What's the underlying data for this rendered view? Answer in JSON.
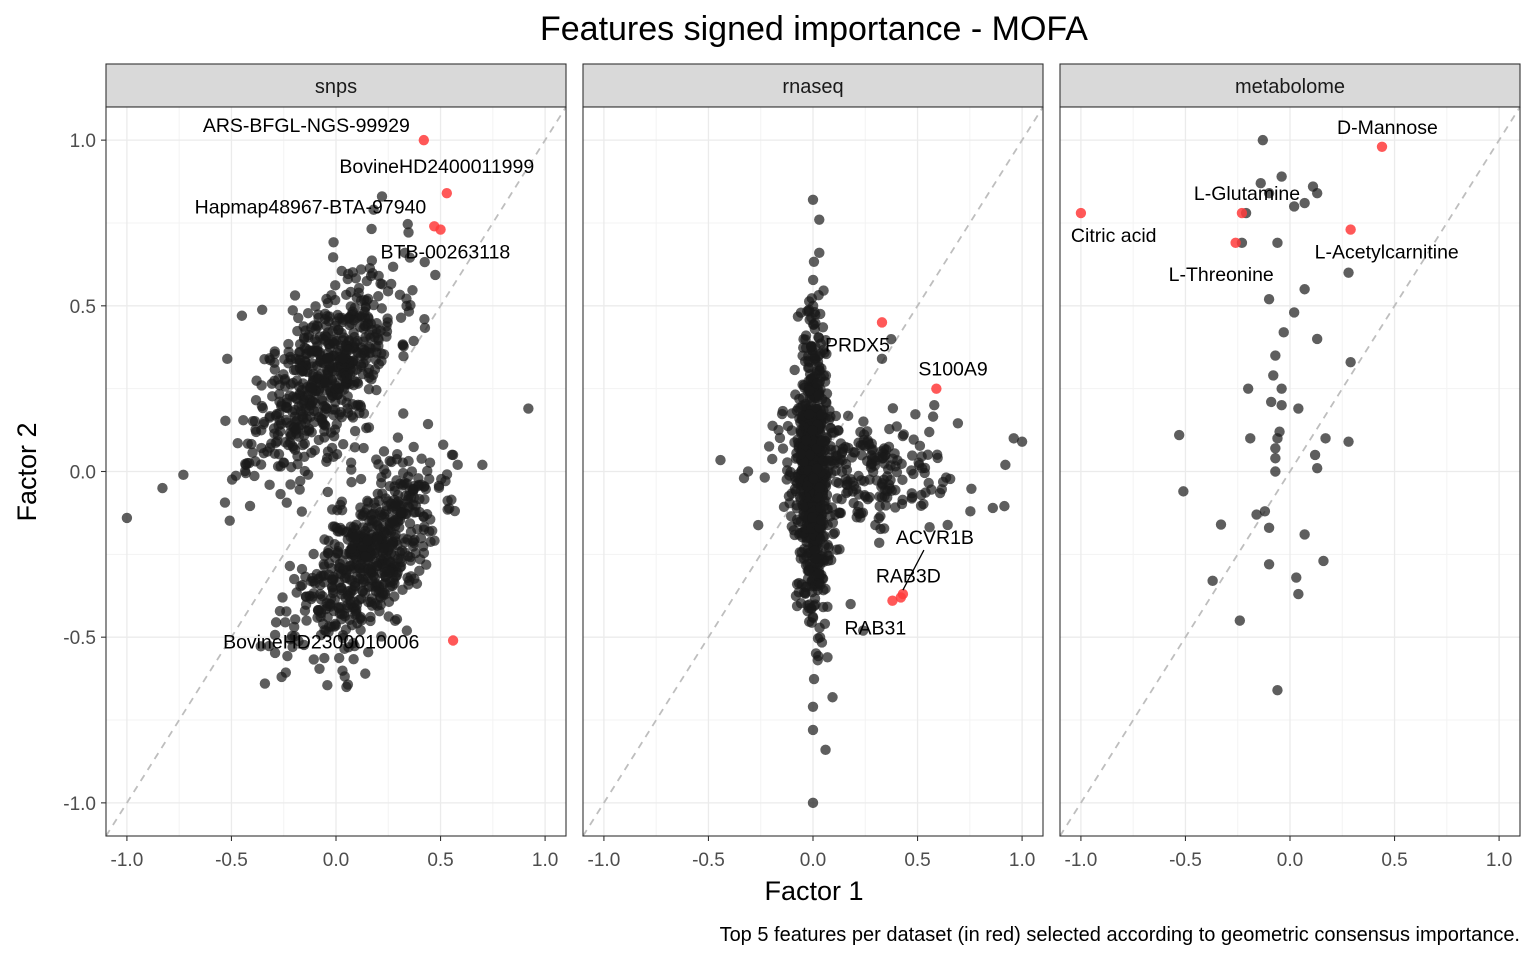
{
  "chart_data": {
    "type": "scatter",
    "title": "Features signed importance - MOFA",
    "xlabel": "Factor 1",
    "ylabel": "Factor 2",
    "caption": "Top 5 features per dataset (in red) selected according to geometric consensus importance.",
    "xlim": [
      -1.0,
      1.0
    ],
    "ylim": [
      -1.0,
      1.0
    ],
    "x_ticks": [
      -1.0,
      -0.5,
      0.0,
      0.5,
      1.0
    ],
    "y_ticks": [
      -1.0,
      -0.5,
      0.0,
      0.5,
      1.0
    ],
    "x_tick_labels": [
      "-1.0",
      "-0.5",
      "0.0",
      "0.5",
      "1.0"
    ],
    "y_tick_labels": [
      "-1.0",
      "-0.5",
      "0.0",
      "0.5",
      "1.0"
    ],
    "grid": true,
    "reference_line": "y = x (dashed grey)",
    "colors": {
      "point": "#1a1a1a",
      "highlight": "#ff3b3b",
      "strip": "#d9d9d9",
      "grid": "#ebebeb",
      "refline": "#bebebe"
    },
    "panels": [
      {
        "name": "snps",
        "highlighted": [
          {
            "label": "ARS-BFGL-NGS-99929",
            "x": 0.42,
            "y": 1.0
          },
          {
            "label": "BovineHD2400011999",
            "x": 0.53,
            "y": 0.84
          },
          {
            "label": "Hapmap48967-BTA-97940",
            "x": 0.47,
            "y": 0.74
          },
          {
            "label": "BTB-00263118",
            "x": 0.5,
            "y": 0.73
          },
          {
            "label": "BovineHD2300010006",
            "x": 0.56,
            "y": -0.51
          }
        ],
        "clusters": [
          {
            "count": 600,
            "cx": -0.05,
            "cy": 0.3,
            "sx": 0.17,
            "sy": 0.15,
            "rho": 0.6,
            "seed": 11
          },
          {
            "count": 600,
            "cx": 0.14,
            "cy": -0.27,
            "sx": 0.17,
            "sy": 0.14,
            "rho": 0.6,
            "seed": 23
          }
        ],
        "points": [
          {
            "x": -1.0,
            "y": -0.14
          },
          {
            "x": 0.92,
            "y": 0.19
          },
          {
            "x": 0.22,
            "y": 0.83
          },
          {
            "x": -0.45,
            "y": 0.47
          },
          {
            "x": -0.83,
            "y": -0.05
          },
          {
            "x": -0.73,
            "y": -0.01
          },
          {
            "x": -0.34,
            "y": -0.64
          },
          {
            "x": -0.26,
            "y": -0.62
          },
          {
            "x": 0.14,
            "y": -0.61
          },
          {
            "x": 0.05,
            "y": -0.65
          },
          {
            "x": 0.7,
            "y": 0.02
          },
          {
            "x": 0.56,
            "y": 0.05
          },
          {
            "x": -0.52,
            "y": 0.34
          },
          {
            "x": 0.33,
            "y": 0.66
          },
          {
            "x": 0.18,
            "y": 0.79
          }
        ]
      },
      {
        "name": "rnaseq",
        "highlighted": [
          {
            "label": "PRDX5",
            "x": 0.33,
            "y": 0.45
          },
          {
            "label": "S100A9",
            "x": 0.59,
            "y": 0.25
          },
          {
            "label": "ACVR1B",
            "x": 0.43,
            "y": -0.37
          },
          {
            "label": "RAB3D",
            "x": 0.42,
            "y": -0.38
          },
          {
            "label": "RAB31",
            "x": 0.38,
            "y": -0.39
          }
        ],
        "clusters": [
          {
            "count": 700,
            "cx": 0.0,
            "cy": 0.0,
            "sx": 0.035,
            "sy": 0.22,
            "rho": 0.0,
            "seed": 5
          },
          {
            "count": 260,
            "cx": 0.2,
            "cy": 0.0,
            "sx": 0.22,
            "sy": 0.1,
            "rho": 0.0,
            "seed": 9
          }
        ],
        "points": [
          {
            "x": -0.33,
            "y": -0.02
          },
          {
            "x": 0.0,
            "y": 0.82
          },
          {
            "x": 0.03,
            "y": 0.76
          },
          {
            "x": 0.03,
            "y": 0.66
          },
          {
            "x": 0.0,
            "y": -1.0
          },
          {
            "x": 0.06,
            "y": -0.84
          },
          {
            "x": 0.0,
            "y": -0.78
          },
          {
            "x": 0.0,
            "y": -0.71
          },
          {
            "x": 1.0,
            "y": 0.09
          },
          {
            "x": 0.96,
            "y": 0.1
          },
          {
            "x": 0.92,
            "y": 0.02
          },
          {
            "x": 0.86,
            "y": -0.11
          },
          {
            "x": 0.24,
            "y": -0.48
          },
          {
            "x": 0.18,
            "y": -0.4
          },
          {
            "x": 0.58,
            "y": 0.2
          },
          {
            "x": 0.33,
            "y": 0.34
          }
        ]
      },
      {
        "name": "metabolome",
        "highlighted": [
          {
            "label": "D-Mannose",
            "x": 0.44,
            "y": 0.98
          },
          {
            "label": "L-Glutamine",
            "x": -0.23,
            "y": 0.78
          },
          {
            "label": "Citric acid",
            "x": -1.0,
            "y": 0.78
          },
          {
            "label": "L-Acetylcarnitine",
            "x": 0.29,
            "y": 0.73
          },
          {
            "label": "L-Threonine",
            "x": -0.26,
            "y": 0.69
          }
        ],
        "clusters": [],
        "points": [
          {
            "x": -0.13,
            "y": 1.0
          },
          {
            "x": -0.04,
            "y": 0.89
          },
          {
            "x": -0.14,
            "y": 0.87
          },
          {
            "x": 0.11,
            "y": 0.86
          },
          {
            "x": 0.13,
            "y": 0.84
          },
          {
            "x": -0.1,
            "y": 0.84
          },
          {
            "x": 0.07,
            "y": 0.81
          },
          {
            "x": 0.02,
            "y": 0.8
          },
          {
            "x": -0.21,
            "y": 0.78
          },
          {
            "x": -0.23,
            "y": 0.69
          },
          {
            "x": -0.06,
            "y": 0.69
          },
          {
            "x": 0.28,
            "y": 0.6
          },
          {
            "x": 0.07,
            "y": 0.55
          },
          {
            "x": -0.1,
            "y": 0.52
          },
          {
            "x": 0.02,
            "y": 0.48
          },
          {
            "x": -0.03,
            "y": 0.42
          },
          {
            "x": 0.13,
            "y": 0.4
          },
          {
            "x": -0.07,
            "y": 0.35
          },
          {
            "x": 0.29,
            "y": 0.33
          },
          {
            "x": -0.08,
            "y": 0.29
          },
          {
            "x": -0.2,
            "y": 0.25
          },
          {
            "x": -0.04,
            "y": 0.25
          },
          {
            "x": -0.09,
            "y": 0.21
          },
          {
            "x": -0.04,
            "y": 0.2
          },
          {
            "x": 0.04,
            "y": 0.19
          },
          {
            "x": -0.53,
            "y": 0.11
          },
          {
            "x": -0.05,
            "y": 0.12
          },
          {
            "x": -0.19,
            "y": 0.1
          },
          {
            "x": -0.06,
            "y": 0.1
          },
          {
            "x": 0.17,
            "y": 0.1
          },
          {
            "x": -0.07,
            "y": 0.07
          },
          {
            "x": 0.28,
            "y": 0.09
          },
          {
            "x": 0.12,
            "y": 0.05
          },
          {
            "x": -0.07,
            "y": 0.04
          },
          {
            "x": -0.07,
            "y": 0.0
          },
          {
            "x": 0.13,
            "y": 0.01
          },
          {
            "x": -0.51,
            "y": -0.06
          },
          {
            "x": -0.16,
            "y": -0.13
          },
          {
            "x": -0.33,
            "y": -0.16
          },
          {
            "x": -0.1,
            "y": -0.17
          },
          {
            "x": -0.12,
            "y": -0.12
          },
          {
            "x": 0.07,
            "y": -0.19
          },
          {
            "x": 0.16,
            "y": -0.27
          },
          {
            "x": -0.1,
            "y": -0.28
          },
          {
            "x": -0.37,
            "y": -0.33
          },
          {
            "x": 0.03,
            "y": -0.32
          },
          {
            "x": 0.04,
            "y": -0.37
          },
          {
            "x": -0.24,
            "y": -0.45
          },
          {
            "x": -0.06,
            "y": -0.66
          }
        ]
      }
    ]
  }
}
